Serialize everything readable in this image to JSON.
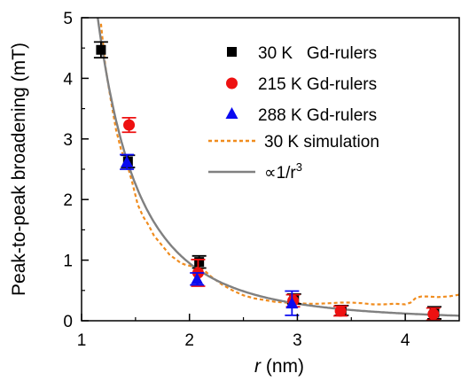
{
  "chart_data": {
    "type": "scatter",
    "xlabel_italic": "r",
    "xlabel_rest": " (nm)",
    "ylabel": "Peak-to-peak broadening (mT)",
    "xlim": [
      1.0,
      4.5
    ],
    "ylim": [
      0,
      5
    ],
    "xticks": [
      1,
      2,
      3,
      4
    ],
    "yticks": [
      0,
      1,
      2,
      3,
      4,
      5
    ],
    "legend_position": "top-right",
    "series": [
      {
        "name": "30 K   Gd-rulers",
        "marker": "square",
        "color": "#000000",
        "points": [
          {
            "x": 1.18,
            "y": 4.47,
            "err": 0.13
          },
          {
            "x": 1.43,
            "y": 2.63,
            "err": 0.1
          },
          {
            "x": 2.09,
            "y": 0.97,
            "err": 0.1
          },
          {
            "x": 2.97,
            "y": 0.36,
            "err": 0.08
          },
          {
            "x": 3.41,
            "y": 0.17,
            "err": 0.08
          },
          {
            "x": 4.27,
            "y": 0.13,
            "err": 0.1
          }
        ]
      },
      {
        "name": "215 K Gd-rulers",
        "marker": "circle",
        "color": "#ee1111",
        "points": [
          {
            "x": 1.44,
            "y": 3.23,
            "err": 0.12
          },
          {
            "x": 2.08,
            "y": 0.79,
            "err": 0.22
          },
          {
            "x": 2.96,
            "y": 0.33,
            "err": 0.1
          },
          {
            "x": 3.4,
            "y": 0.16,
            "err": 0.08
          },
          {
            "x": 4.26,
            "y": 0.11,
            "err": 0.1
          }
        ]
      },
      {
        "name": "288 K Gd-rulers",
        "marker": "triangle",
        "color": "#0a0af0",
        "points": [
          {
            "x": 1.42,
            "y": 2.62,
            "err": 0.12
          },
          {
            "x": 2.07,
            "y": 0.69,
            "err": 0.1
          },
          {
            "x": 2.95,
            "y": 0.29,
            "err": 0.2
          }
        ]
      }
    ],
    "simulation": {
      "name": "30 K simulation",
      "color": "#f08c1e",
      "dashed": true,
      "x": [
        1.18,
        1.22,
        1.27,
        1.32,
        1.37,
        1.42,
        1.47,
        1.52,
        1.57,
        1.62,
        1.67,
        1.72,
        1.77,
        1.82,
        1.87,
        1.92,
        1.97,
        2.02,
        2.07,
        2.12,
        2.2,
        2.3,
        2.4,
        2.5,
        2.6,
        2.7,
        2.8,
        2.9,
        3.0,
        3.1,
        3.2,
        3.3,
        3.4,
        3.5,
        3.6,
        3.7,
        3.8,
        3.9,
        4.0,
        4.05,
        4.1,
        4.15,
        4.2,
        4.3,
        4.4,
        4.5
      ],
      "y": [
        4.9,
        4.2,
        3.65,
        3.15,
        2.8,
        2.6,
        2.28,
        1.92,
        1.72,
        1.58,
        1.41,
        1.3,
        1.19,
        1.08,
        1.02,
        0.95,
        0.92,
        0.9,
        0.88,
        0.86,
        0.73,
        0.6,
        0.5,
        0.42,
        0.37,
        0.34,
        0.31,
        0.3,
        0.29,
        0.28,
        0.28,
        0.29,
        0.3,
        0.3,
        0.29,
        0.27,
        0.27,
        0.28,
        0.27,
        0.3,
        0.38,
        0.4,
        0.4,
        0.39,
        0.4,
        0.43
      ]
    },
    "fit": {
      "name_prefix": "∝1/r",
      "name_sup": "3",
      "color": "#808080",
      "coefficient": 7.6
    }
  }
}
